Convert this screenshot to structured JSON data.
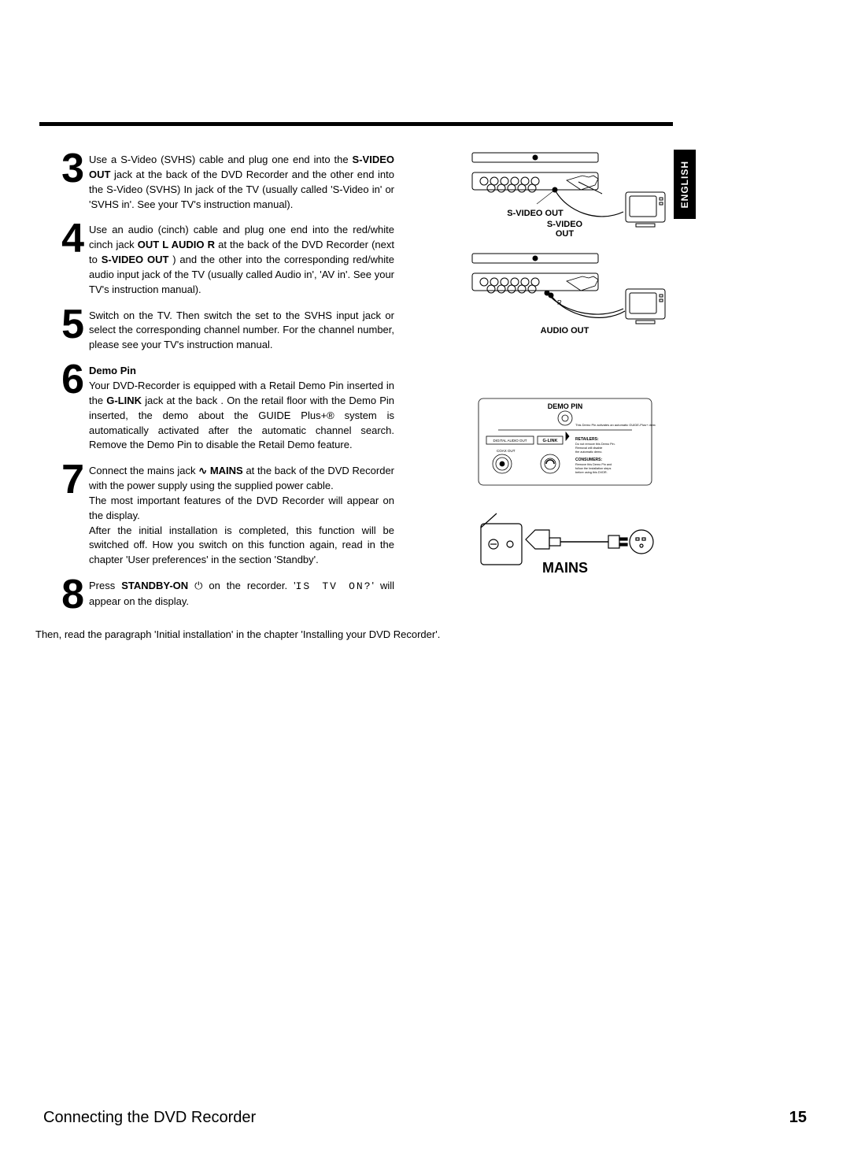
{
  "language_tab": "ENGLISH",
  "footer": {
    "section": "Connecting the DVD Recorder",
    "page": "15"
  },
  "steps": [
    {
      "num": "3",
      "heading": "",
      "segments": [
        {
          "t": "Use a S-Video (SVHS) cable and plug one end into the ",
          "b": false
        },
        {
          "t": "S-VIDEO OUT",
          "b": true
        },
        {
          "t": " jack at the back of the DVD Recorder and the other end into the S-Video (SVHS) In jack of the TV (usually called 'S-Video in' or 'SVHS in'. See your TV's instruction manual).",
          "b": false
        }
      ]
    },
    {
      "num": "4",
      "heading": "",
      "segments": [
        {
          "t": "Use an audio (cinch) cable and plug one end into the red/white cinch jack ",
          "b": false
        },
        {
          "t": "OUT L AUDIO R",
          "b": true
        },
        {
          "t": " at the back of the DVD Recorder (next to ",
          "b": false
        },
        {
          "t": "S-VIDEO OUT",
          "b": true
        },
        {
          "t": " ) and the other into the corresponding red/white audio input jack of the TV (usually called Audio in', 'AV in'. See your TV's instruction manual).",
          "b": false
        }
      ]
    },
    {
      "num": "5",
      "heading": "",
      "segments": [
        {
          "t": "Switch on the TV. Then switch the set to the SVHS input jack or select the corresponding channel number. For the channel number, please see your TV's instruction manual.",
          "b": false
        }
      ]
    },
    {
      "num": "6",
      "heading": "Demo Pin",
      "segments": [
        {
          "t": "Your DVD-Recorder is equipped with a Retail Demo Pin inserted in the ",
          "b": false
        },
        {
          "t": "G-LINK",
          "b": true
        },
        {
          "t": " jack at the back . On the retail floor with the Demo Pin inserted, the demo about the GUIDE Plus+® system is automatically activated after the automatic channel search. Remove the Demo Pin to disable the Retail Demo feature.",
          "b": false
        }
      ]
    },
    {
      "num": "7",
      "heading": "",
      "segments": [
        {
          "t": "Connect the mains jack ",
          "b": false
        },
        {
          "t": "∿ MAINS",
          "b": true
        },
        {
          "t": " at the back of the DVD Recorder with the power supply using the supplied power cable.\nThe most important features of the DVD Recorder will appear on the display.\nAfter the initial installation is completed, this function will be switched off. How you switch on this function again, read in the chapter 'User preferences' in the section 'Standby'.",
          "b": false
        }
      ]
    },
    {
      "num": "8",
      "heading": "",
      "segments": [
        {
          "t": "Press ",
          "b": false
        },
        {
          "t": "STANDBY-ON",
          "b": true
        },
        {
          "t": " ⏻ on the recorder. '",
          "b": false
        },
        {
          "t": "IS TV ON?",
          "seg": true
        },
        {
          "t": "' will appear on the display.",
          "b": false
        }
      ]
    }
  ],
  "closing": "Then, read the paragraph 'Initial installation' in the chapter 'Installing your DVD Recorder'.",
  "illustrations": {
    "svideo_label": "S-VIDEO OUT",
    "audio_label": "AUDIO OUT",
    "demo_pin_label": "DEMO PIN",
    "glink_label": "G-LINK",
    "digital_audio": "DIGITAL AUDIO OUT",
    "coax_label": "COAX OUT",
    "retailers_head": "RETAILERS:",
    "retailers_txt": "Do not remove this Demo Pin. Removal will disable the automatic demo.",
    "consumers_head": "CONSUMERS:",
    "consumers_txt": "Remove this Demo Pin and follow the Installation steps before using this DVDR.",
    "demo_note": "This Demo Pin activates an automatic GUIDE-Plus+ demo.",
    "mains_label": "MAINS"
  },
  "colors": {
    "text": "#000000",
    "bg": "#ffffff",
    "stroke": "#000000"
  }
}
